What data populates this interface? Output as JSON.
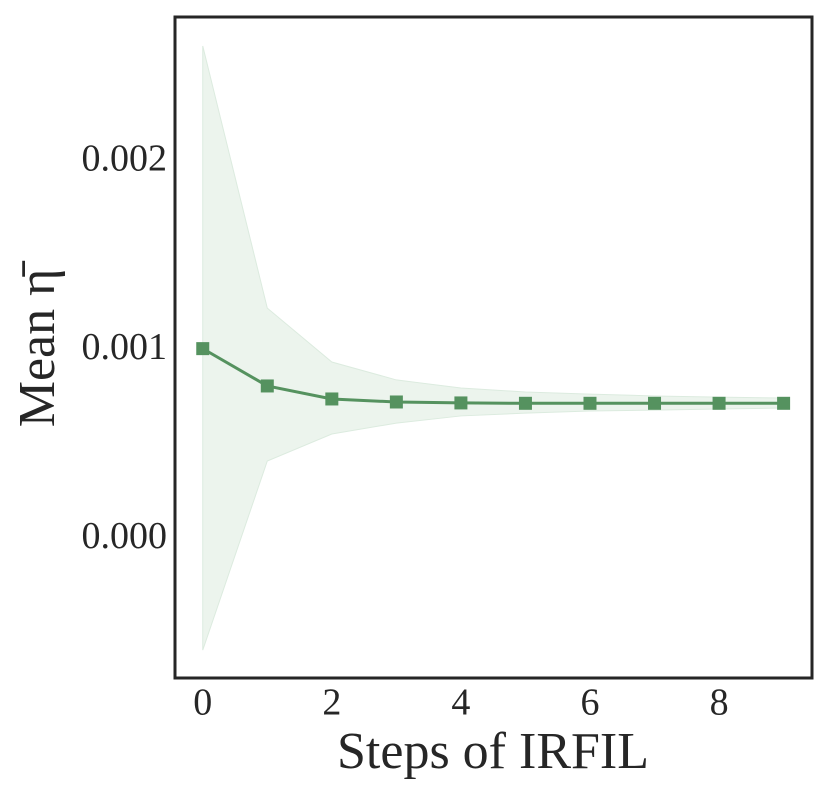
{
  "chart_data": {
    "type": "line",
    "x_label": "Steps of IRFIL",
    "y_label": "Mean η̄",
    "x": [
      0,
      1,
      2,
      3,
      4,
      5,
      6,
      7,
      8,
      9
    ],
    "series": [
      {
        "color": "#55925f",
        "band_color": "#dcebdf",
        "values": [
          0.00101,
          0.000812,
          0.000743,
          0.000727,
          0.000722,
          0.00072,
          0.00072,
          0.00072,
          0.00072,
          0.00072
        ],
        "upper": [
          0.002615,
          0.001225,
          0.000939,
          0.000844,
          0.000801,
          0.00078,
          0.000769,
          0.000759,
          0.000753,
          0.000748
        ],
        "lower": [
          -0.000589,
          0.000414,
          0.000557,
          0.000615,
          0.000653,
          0.000668,
          0.000679,
          0.000684,
          0.00069,
          0.000695
        ]
      }
    ],
    "xlim": [
      -0.43,
      9.44
    ],
    "ylim": [
      -0.000737,
      0.002769
    ],
    "xticks": [
      0,
      2,
      4,
      6,
      8
    ],
    "yticks": [
      {
        "value": 0,
        "label": "0.000"
      },
      0.001,
      0.002
    ],
    "grid": false
  }
}
